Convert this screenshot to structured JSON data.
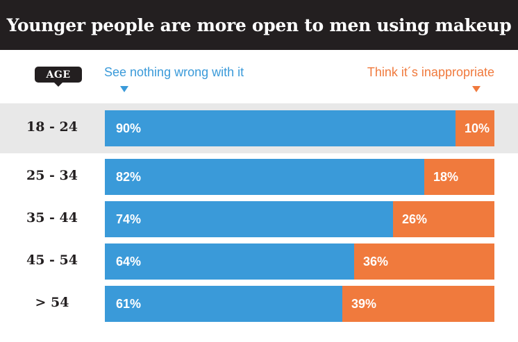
{
  "chart_data": {
    "type": "bar",
    "orientation": "horizontal",
    "stacked": true,
    "title": "Younger people are more open to men using makeup",
    "category_header": "AGE",
    "categories": [
      "18 - 24",
      "25 - 34",
      "35 - 44",
      "45 - 54",
      "> 54"
    ],
    "highlighted_category": "18 - 24",
    "series": [
      {
        "name": "See nothing wrong with it",
        "values": [
          90,
          82,
          74,
          64,
          61
        ],
        "labels": [
          "90%",
          "82%",
          "74%",
          "64%",
          "61%"
        ],
        "color": "#3a9ad9"
      },
      {
        "name": "Think it´s inappropriate",
        "values": [
          10,
          18,
          26,
          36,
          39
        ],
        "labels": [
          "10%",
          "18%",
          "26%",
          "36%",
          "39%"
        ],
        "color": "#f07a3d"
      }
    ],
    "xlim": [
      0,
      100
    ],
    "grid": false,
    "legend": "top"
  },
  "colors": {
    "header_bg": "#231f20",
    "highlight_row": "#e8e8e8"
  }
}
